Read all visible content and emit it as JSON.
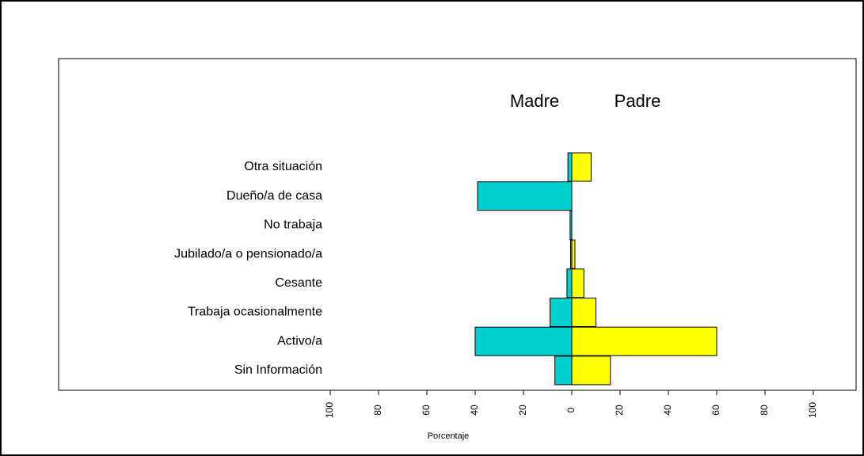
{
  "chart_data": {
    "type": "bar",
    "orientation": "horizontal",
    "x_label": "Porcentaje",
    "categories": [
      "Otra situación",
      "Dueño/a de casa",
      "No trabaja",
      "Jubilado/a o pensionado/a",
      "Cesante",
      "Trabaja  ocasionalmente",
      "Activo/a",
      "Sin Información"
    ],
    "series": [
      {
        "name": "Madre",
        "color": "#00cfcf",
        "values": [
          -1.6,
          -39,
          -0.7,
          -0.5,
          -2,
          -9,
          -40,
          -7
        ]
      },
      {
        "name": "Padre",
        "color": "#ffff00",
        "values": [
          8,
          0,
          0,
          1.3,
          5,
          10,
          60,
          16
        ]
      }
    ],
    "xlim": [
      -100,
      100
    ],
    "xticks": [
      {
        "value": -100,
        "label": "100"
      },
      {
        "value": -80,
        "label": "80"
      },
      {
        "value": -60,
        "label": "60"
      },
      {
        "value": -40,
        "label": "40"
      },
      {
        "value": -20,
        "label": "20"
      },
      0,
      20,
      40,
      60,
      80,
      100
    ]
  }
}
